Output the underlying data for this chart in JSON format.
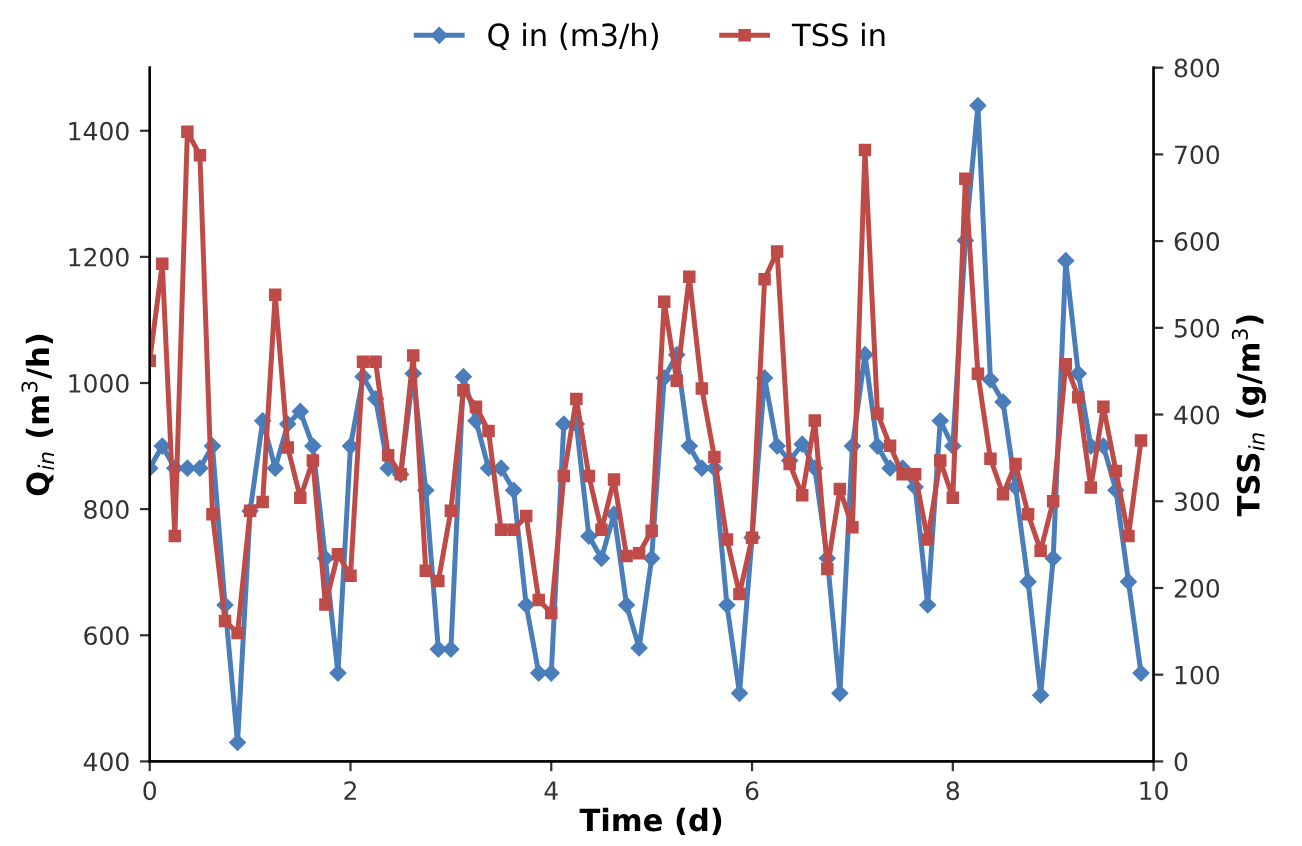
{
  "chart_data": {
    "type": "line",
    "xlabel": "Time (d)",
    "ylabel": "Q$_{in}$ (m$^{3}$/h)",
    "y2label": "TSS$_{in}$ (g/m$^{3}$)",
    "x": [
      0,
      0.125,
      0.25,
      0.375,
      0.5,
      0.625,
      0.75,
      0.875,
      1,
      1.125,
      1.25,
      1.375,
      1.5,
      1.625,
      1.75,
      1.875,
      2,
      2.125,
      2.25,
      2.375,
      2.5,
      2.625,
      2.75,
      2.875,
      3,
      3.125,
      3.25,
      3.375,
      3.5,
      3.625,
      3.75,
      3.875,
      4,
      4.125,
      4.25,
      4.375,
      4.5,
      4.625,
      4.75,
      4.875,
      5,
      5.125,
      5.25,
      5.375,
      5.5,
      5.625,
      5.75,
      5.875,
      6,
      6.125,
      6.25,
      6.375,
      6.5,
      6.625,
      6.75,
      6.875,
      7,
      7.125,
      7.25,
      7.375,
      7.5,
      7.625,
      7.75,
      7.875,
      8,
      8.125,
      8.25,
      8.375,
      8.5,
      8.625,
      8.75,
      8.875,
      9,
      9.125,
      9.25,
      9.375,
      9.5,
      9.625,
      9.75,
      9.875
    ],
    "series": [
      {
        "name": "Q in (m3/h)",
        "color": "#4a7ebb",
        "marker": "diamond",
        "values": [
          865,
          900,
          865,
          865,
          865,
          900,
          648,
          430,
          797,
          940,
          865,
          935,
          955,
          900,
          722,
          540,
          900,
          1010,
          975,
          865,
          855,
          1015,
          830,
          578,
          578,
          1010,
          940,
          865,
          865,
          830,
          648,
          540,
          540,
          935,
          935,
          757,
          722,
          792,
          648,
          580,
          722,
          1008,
          1045,
          900,
          865,
          865,
          648,
          508,
          755,
          1008,
          900,
          877,
          903,
          865,
          722,
          508,
          900,
          1045,
          900,
          865,
          865,
          835,
          648,
          940,
          900,
          1226,
          1440,
          1005,
          970,
          835,
          685,
          505,
          722,
          1194,
          1015,
          900,
          900,
          830,
          685,
          540
        ]
      },
      {
        "name": "TSS in",
        "color": "#be4b48",
        "marker": "square",
        "axis": "y2",
        "values": [
          462,
          574,
          260,
          726,
          699,
          285,
          162,
          148,
          289,
          299,
          538,
          362,
          304,
          347,
          181,
          239,
          214,
          461,
          461,
          353,
          331,
          468,
          220,
          208,
          289,
          428,
          409,
          381,
          267,
          267,
          283,
          186,
          171,
          329,
          418,
          329,
          267,
          325,
          237,
          240,
          266,
          530,
          439,
          559,
          430,
          351,
          256,
          193,
          258,
          556,
          588,
          343,
          307,
          393,
          222,
          314,
          270,
          705,
          401,
          364,
          331,
          331,
          256,
          347,
          304,
          672,
          447,
          349,
          308,
          343,
          285,
          243,
          300,
          458,
          420,
          316,
          409,
          335,
          260,
          370
        ]
      }
    ],
    "xlim": [
      0,
      10
    ],
    "xticks": [
      0,
      2,
      4,
      6,
      8,
      10
    ],
    "ylim": [
      400,
      1500
    ],
    "yticks": [
      400,
      600,
      800,
      1000,
      1200,
      1400
    ],
    "y2lim": [
      0,
      800
    ],
    "y2ticks": [
      0,
      100,
      200,
      300,
      400,
      500,
      600,
      700,
      800
    ],
    "grid": false,
    "legend": "top",
    "line_style": "solid"
  }
}
